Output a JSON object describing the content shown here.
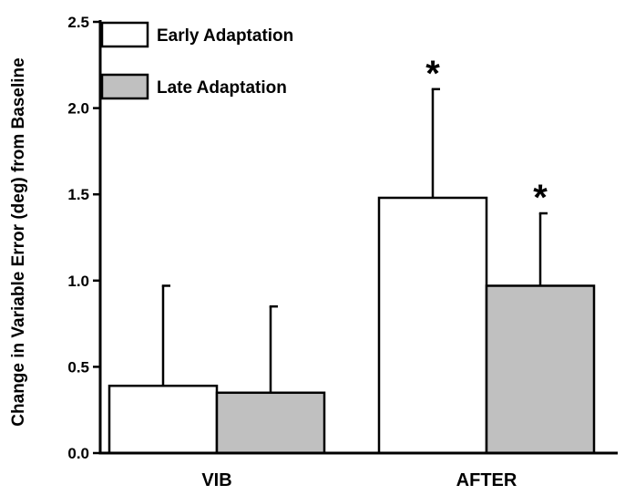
{
  "chart_data": {
    "type": "bar",
    "title": "",
    "xlabel": "",
    "ylabel": "Change in Variable Error (deg) from Baseline",
    "ylim": [
      0,
      2.5
    ],
    "yticks": [
      "0.0",
      "0.5",
      "1.0",
      "1.5",
      "2.0",
      "2.5"
    ],
    "categories": [
      "VIB",
      "AFTER"
    ],
    "grid": false,
    "legend_position": "top-left",
    "series": [
      {
        "name": "Early Adaptation",
        "color": "#ffffff",
        "values": [
          0.39,
          1.48
        ],
        "error_upper": [
          0.97,
          2.11
        ],
        "significance": [
          "",
          "*"
        ]
      },
      {
        "name": "Late Adaptation",
        "color": "#c0c0c0",
        "values": [
          0.35,
          0.97
        ],
        "error_upper": [
          0.85,
          1.39
        ],
        "significance": [
          "",
          "*"
        ]
      }
    ]
  }
}
